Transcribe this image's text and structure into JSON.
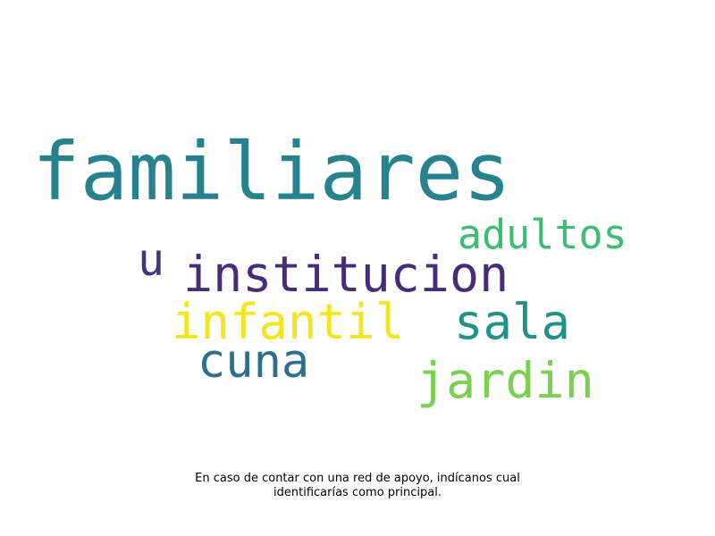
{
  "word_cloud": {
    "words": [
      {
        "text": "familiares",
        "color": "#26828e"
      },
      {
        "text": "adultos",
        "color": "#3dbc74"
      },
      {
        "text": "u",
        "color": "#46337e"
      },
      {
        "text": "institucion",
        "color": "#472c7a"
      },
      {
        "text": "infantil",
        "color": "#f3e51e"
      },
      {
        "text": "sala",
        "color": "#21918c"
      },
      {
        "text": "cuna",
        "color": "#2c6f8e"
      },
      {
        "text": "jardin",
        "color": "#7ad151"
      }
    ]
  },
  "caption": {
    "line1": "En caso de contar con una red de apoyo, indícanos cual",
    "line2": "identificarías como principal."
  }
}
